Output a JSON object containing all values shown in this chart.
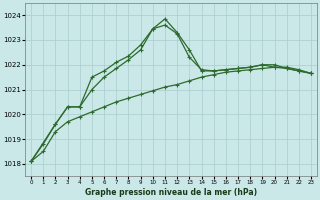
{
  "title": "Graphe pression niveau de la mer (hPa)",
  "bg_color": "#cbe8e8",
  "grid_color": "#a8cccc",
  "line_color": "#2d6a2d",
  "x_ticks": [
    0,
    1,
    2,
    3,
    4,
    5,
    6,
    7,
    8,
    9,
    10,
    11,
    12,
    13,
    14,
    15,
    16,
    17,
    18,
    19,
    20,
    21,
    22,
    23
  ],
  "ylim": [
    1017.5,
    1024.5
  ],
  "yticks": [
    1018,
    1019,
    1020,
    1021,
    1022,
    1023,
    1024
  ],
  "line1_x": [
    0,
    1,
    2,
    3,
    4,
    5,
    6,
    7,
    8,
    9,
    10,
    11,
    12,
    13,
    14,
    15,
    16,
    17,
    18,
    19,
    20,
    21,
    22,
    23
  ],
  "line1_y": [
    1018.1,
    1018.8,
    1019.6,
    1020.3,
    1020.3,
    1021.5,
    1021.75,
    1022.1,
    1022.35,
    1022.8,
    1023.45,
    1023.85,
    1023.3,
    1022.6,
    1021.75,
    1021.75,
    1021.8,
    1021.85,
    1021.9,
    1022.0,
    1021.9,
    1021.85,
    1021.75,
    1021.65
  ],
  "line2_x": [
    0,
    2,
    3,
    4,
    5,
    6,
    7,
    8,
    9,
    10,
    11,
    12,
    13,
    14,
    15,
    16,
    17,
    18,
    19,
    20,
    21,
    22,
    23
  ],
  "line2_y": [
    1018.1,
    1019.6,
    1020.3,
    1020.3,
    1021.0,
    1021.5,
    1021.85,
    1022.2,
    1022.6,
    1023.45,
    1023.6,
    1023.25,
    1022.3,
    1021.8,
    1021.75,
    1021.8,
    1021.85,
    1021.9,
    1022.0,
    1022.0,
    1021.85,
    1021.75,
    1021.65
  ],
  "line3_x": [
    0,
    1,
    2,
    3,
    4,
    5,
    6,
    7,
    8,
    9,
    10,
    11,
    12,
    13,
    14,
    15,
    16,
    17,
    18,
    19,
    20,
    21,
    22,
    23
  ],
  "line3_y": [
    1018.1,
    1018.5,
    1019.3,
    1019.7,
    1019.9,
    1020.1,
    1020.3,
    1020.5,
    1020.65,
    1020.8,
    1020.95,
    1021.1,
    1021.2,
    1021.35,
    1021.5,
    1021.6,
    1021.7,
    1021.75,
    1021.8,
    1021.85,
    1021.9,
    1021.9,
    1021.8,
    1021.65
  ]
}
